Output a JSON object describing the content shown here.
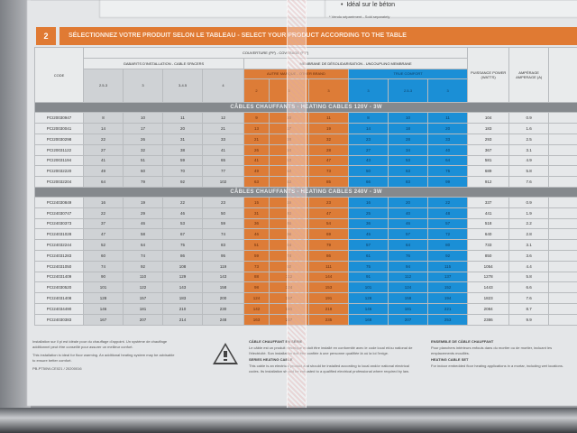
{
  "top": {
    "bullet": "Idéal sur le béton",
    "sold_note": "* Vendu séparément - Sold separately"
  },
  "step": {
    "number": "2",
    "title": "SÉLECTIONNEZ VOTRE PRODUIT SELON LE TABLEAU - SELECT YOUR PRODUCT ACCORDING TO THE TABLE"
  },
  "headers": {
    "code": "CODE",
    "coverage": "COUVERTURE (PI²) - COVERAGE (FT²)",
    "spacers": "GABARITS D'INSTALLATION - CABLE SPACERS",
    "membrane": "MEMBRANE DE DÉSOLIDARISATION - UNCOUPLING MEMBRANE",
    "other_brand": "AUTRE MARQUE - OTHER BRAND",
    "true_comfort": "TRUE COMFORT",
    "power": "PUISSANCE POWER (WATTS)",
    "amperage": "AMPÉRAGE AMPERAGE (A)",
    "spacer_cols": [
      "2.5-3",
      "3",
      "3-4.5",
      "4"
    ],
    "other_cols": [
      "2",
      "3",
      "3"
    ],
    "true_cols": [
      "3",
      "2.5-3",
      "3"
    ]
  },
  "sections": [
    {
      "label": "CÂBLES CHAUFFANTS - HEATING CABLES 120V - 3W",
      "rows": [
        {
          "code": "PCI20030947",
          "spacers": [
            "8",
            "10",
            "11",
            "12"
          ],
          "other": [
            "9",
            "10",
            "11"
          ],
          "true": [
            "8",
            "10",
            "11"
          ],
          "watts": "104",
          "amps": "0.9"
        },
        {
          "code": "PCI20030041",
          "spacers": [
            "14",
            "17",
            "20",
            "21"
          ],
          "other": [
            "13",
            "17",
            "19"
          ],
          "true": [
            "14",
            "18",
            "20"
          ],
          "watts": "183",
          "amps": "1.6"
        },
        {
          "code": "PCI20030298",
          "spacers": [
            "22",
            "26",
            "31",
            "33"
          ],
          "other": [
            "21",
            "28",
            "32"
          ],
          "true": [
            "23",
            "28",
            "33"
          ],
          "watts": "293",
          "amps": "2.5"
        },
        {
          "code": "PCI20031122",
          "spacers": [
            "27",
            "32",
            "38",
            "41"
          ],
          "other": [
            "26",
            "34",
            "28"
          ],
          "true": [
            "27",
            "34",
            "40"
          ],
          "watts": "367",
          "amps": "3.1"
        },
        {
          "code": "PCI20031194",
          "spacers": [
            "41",
            "51",
            "59",
            "65"
          ],
          "other": [
            "41",
            "53",
            "47"
          ],
          "true": [
            "43",
            "53",
            "64"
          ],
          "watts": "581",
          "amps": "4.9"
        },
        {
          "code": "PCI20032220",
          "spacers": [
            "49",
            "60",
            "70",
            "77"
          ],
          "other": [
            "49",
            "63",
            "73"
          ],
          "true": [
            "50",
            "63",
            "75"
          ],
          "watts": "689",
          "amps": "5.8"
        },
        {
          "code": "PCI20032204",
          "spacers": [
            "64",
            "79",
            "92",
            "102"
          ],
          "other": [
            "63",
            "83",
            "85"
          ],
          "true": [
            "66",
            "83",
            "99"
          ],
          "watts": "912",
          "amps": "7.6"
        }
      ]
    },
    {
      "label": "CÂBLES CHAUFFANTS - HEATING CABLES 240V - 3W",
      "rows": [
        {
          "code": "PCI24030849",
          "spacers": [
            "16",
            "19",
            "22",
            "23"
          ],
          "other": [
            "15",
            "19",
            "23"
          ],
          "true": [
            "16",
            "20",
            "22"
          ],
          "watts": "337",
          "amps": "0.9"
        },
        {
          "code": "PCI24030747",
          "spacers": [
            "22",
            "29",
            "46",
            "50"
          ],
          "other": [
            "31",
            "40",
            "47"
          ],
          "true": [
            "25",
            "40",
            "48"
          ],
          "watts": "441",
          "amps": "1.9"
        },
        {
          "code": "PCI24030373",
          "spacers": [
            "37",
            "46",
            "53",
            "59"
          ],
          "other": [
            "36",
            "46",
            "54"
          ],
          "true": [
            "36",
            "46",
            "57"
          ],
          "watts": "518",
          "amps": "2.2"
        },
        {
          "code": "PCI24031028",
          "spacers": [
            "47",
            "58",
            "67",
            "74"
          ],
          "other": [
            "46",
            "58",
            "69"
          ],
          "true": [
            "45",
            "57",
            "72"
          ],
          "watts": "640",
          "amps": "2.8"
        },
        {
          "code": "PCI24032244",
          "spacers": [
            "52",
            "64",
            "75",
            "83"
          ],
          "other": [
            "51",
            "64",
            "79"
          ],
          "true": [
            "57",
            "64",
            "80"
          ],
          "watts": "733",
          "amps": "3.1"
        },
        {
          "code": "PCI24031283",
          "spacers": [
            "60",
            "74",
            "86",
            "95"
          ],
          "other": [
            "59",
            "74",
            "86"
          ],
          "true": [
            "61",
            "76",
            "92"
          ],
          "watts": "850",
          "amps": "3.6"
        },
        {
          "code": "PCI24031050",
          "spacers": [
            "74",
            "92",
            "108",
            "119"
          ],
          "other": [
            "73",
            "92",
            "111"
          ],
          "true": [
            "75",
            "94",
            "115"
          ],
          "watts": "1054",
          "amps": "4.4"
        },
        {
          "code": "PCI24031409",
          "spacers": [
            "90",
            "110",
            "129",
            "143"
          ],
          "other": [
            "88",
            "112",
            "144"
          ],
          "true": [
            "91",
            "112",
            "137"
          ],
          "watts": "1278",
          "amps": "5.8"
        },
        {
          "code": "PCI24030520",
          "spacers": [
            "101",
            "122",
            "143",
            "158"
          ],
          "other": [
            "98",
            "124",
            "153"
          ],
          "true": [
            "101",
            "124",
            "152"
          ],
          "watts": "1443",
          "amps": "6.6"
        },
        {
          "code": "PCI24031408",
          "spacers": [
            "128",
            "157",
            "183",
            "200"
          ],
          "other": [
            "124",
            "157",
            "191"
          ],
          "true": [
            "128",
            "158",
            "194"
          ],
          "watts": "1823",
          "amps": "7.6"
        },
        {
          "code": "PCI24034490",
          "spacers": [
            "146",
            "181",
            "210",
            "230"
          ],
          "other": [
            "142",
            "181",
            "218"
          ],
          "true": [
            "146",
            "181",
            "221"
          ],
          "watts": "2084",
          "amps": "8.7"
        },
        {
          "code": "PCI24030383",
          "spacers": [
            "167",
            "207",
            "214",
            "248"
          ],
          "other": [
            "163",
            "207",
            "235"
          ],
          "true": [
            "168",
            "207",
            "253"
          ],
          "watts": "2386",
          "amps": "9.9"
        }
      ]
    }
  ],
  "notes": {
    "left_fr": "Installation sur il pi est idéale pour du chauffage d'appoint. Un système de chauffage additionnel peut être conseillé pour assurer un meilleur confort.",
    "left_en": "This installation is ideal for floor warming. An additional heating system may be advisable to ensure better comfort.",
    "left_ref": "PB-PT50W-CE021 / 20200016",
    "mid_title_fr": "CÂBLE CHAUFFANT EN SÉRIE",
    "mid_fr": "Le câble est un produit électrique et doit être installé en conformité avec le code local et/ou national de l'électricité. Son installation doit être confiée à une personne qualifiée là où la loi l'exige.",
    "mid_title_en": "SERIES HEATING CABLE",
    "mid_en": "This cable is an electrical product and should be installed according to local and/or national electrical codes. Its installation should be entrusted to a qualified electrical professional where required by law.",
    "right_title_fr": "ENSEMBLE DE CÂBLE CHAUFFANT",
    "right_fr": "Pour planchers intérieurs enfouis dans du mortier ou de mortier, incluant les emplacements mouillés.",
    "right_title_en": "HEATING CABLE SET",
    "right_en": "For indoor embedded floor heating applications in a mortar, including wet locations."
  },
  "colors": {
    "orange": "#dd7c37",
    "blue": "#1b8fd6",
    "band": "#85898d"
  }
}
